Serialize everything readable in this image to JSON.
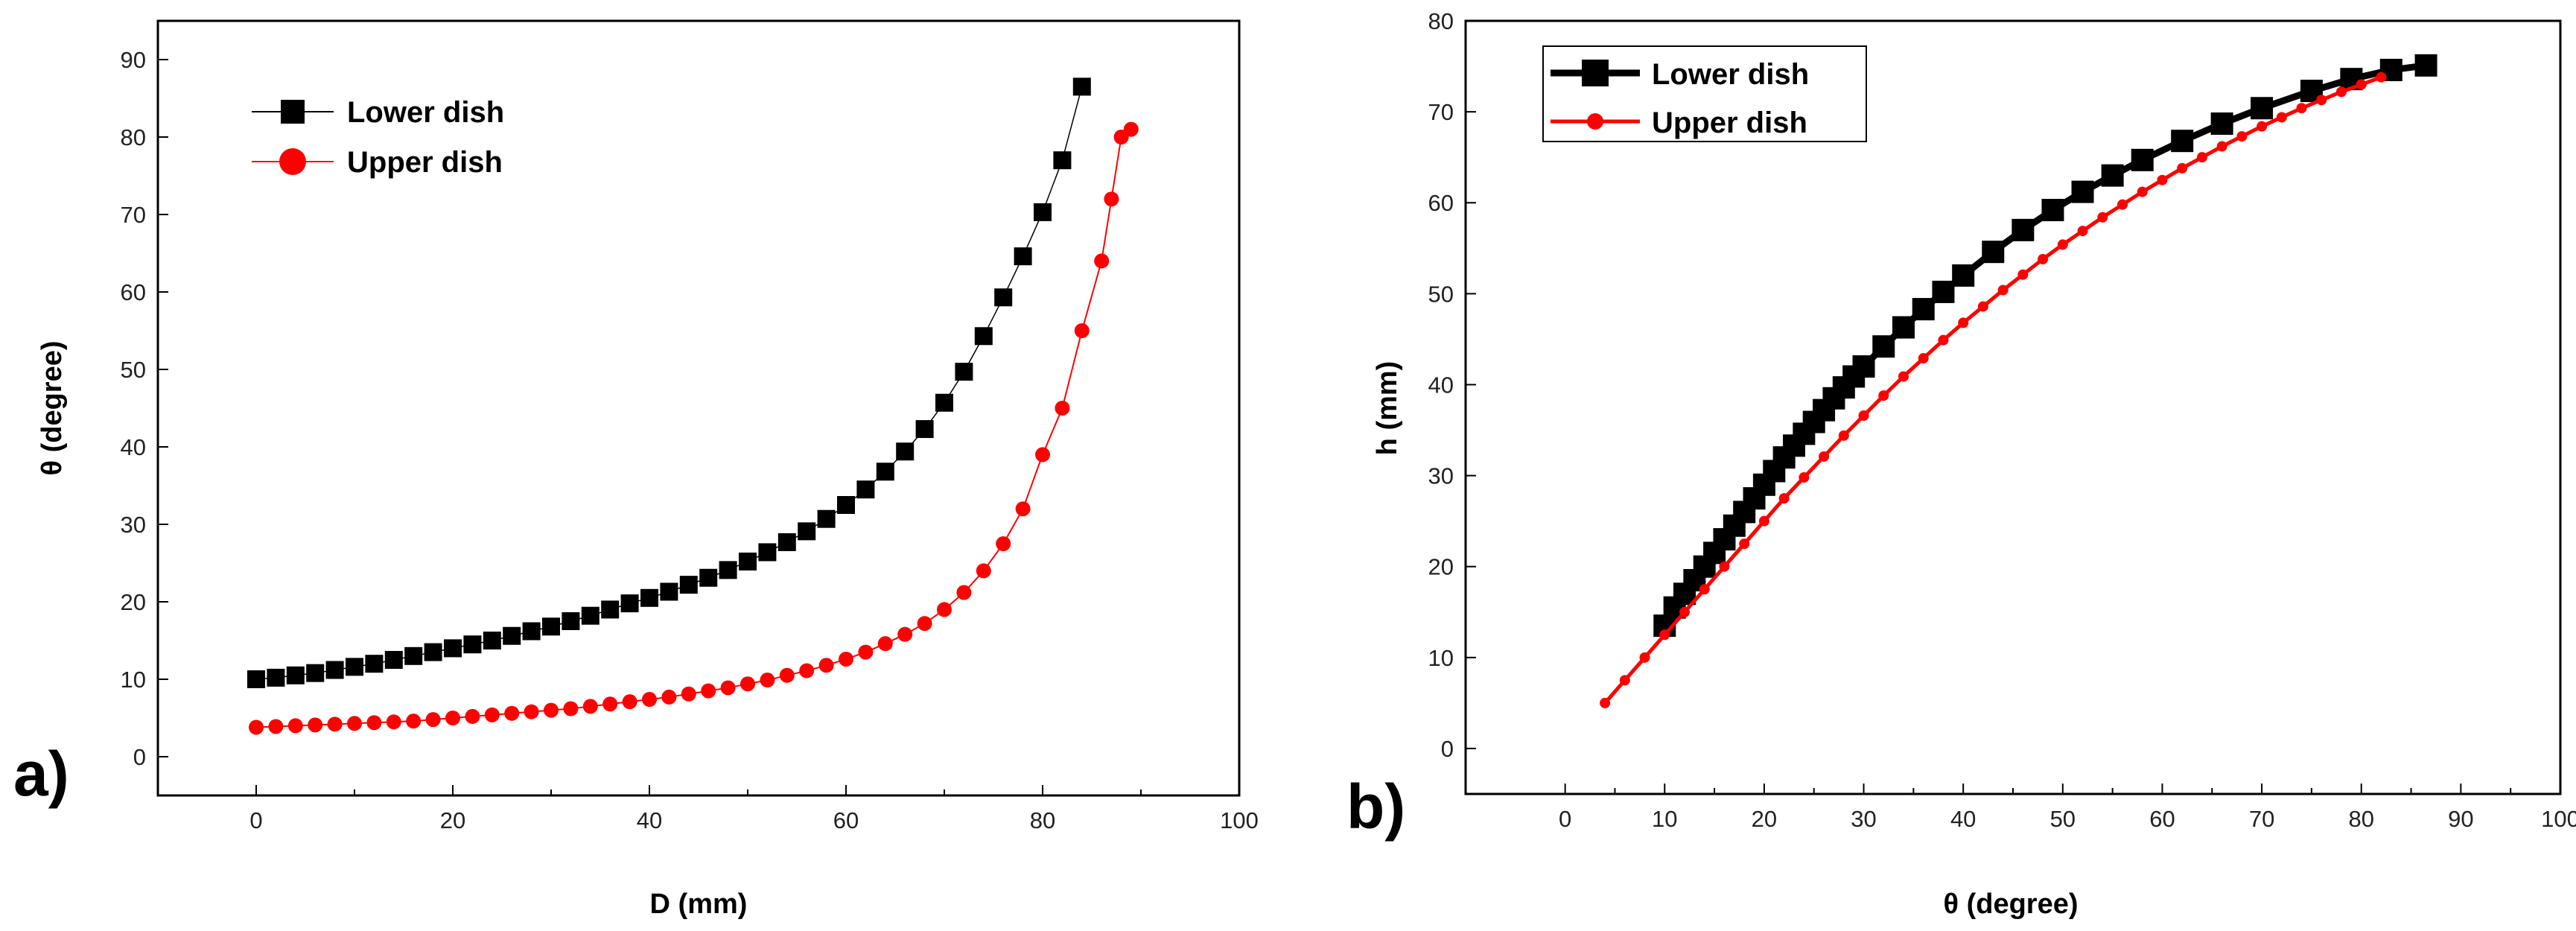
{
  "colors": {
    "lower": "#000000",
    "upper": "#ff0000"
  },
  "chart_data": [
    {
      "type": "scatter",
      "panel_label": "a)",
      "title": "",
      "xlabel": "D (mm)",
      "ylabel": "θ (degree)",
      "xlim": [
        -10,
        100
      ],
      "ylim": [
        -5,
        95
      ],
      "xticks": [
        0,
        20,
        40,
        60,
        80,
        100
      ],
      "yticks": [
        0,
        10,
        20,
        30,
        40,
        50,
        60,
        70,
        80,
        90
      ],
      "legend_position": "top-left",
      "series": [
        {
          "name": "Lower dish",
          "marker": "square",
          "color": "#000000",
          "x": [
            0,
            2,
            4,
            6,
            8,
            10,
            12,
            14,
            16,
            18,
            20,
            22,
            24,
            26,
            28,
            30,
            32,
            34,
            36,
            38,
            40,
            42,
            44,
            46,
            48,
            50,
            52,
            54,
            56,
            58,
            60,
            62,
            64,
            66,
            68,
            70,
            72,
            74,
            76,
            78,
            80,
            82,
            84
          ],
          "y": [
            10.0,
            10.2,
            10.5,
            10.8,
            11.2,
            11.6,
            12.0,
            12.5,
            13.0,
            13.5,
            14.0,
            14.5,
            15.0,
            15.6,
            16.2,
            16.8,
            17.5,
            18.2,
            19.0,
            19.8,
            20.5,
            21.3,
            22.2,
            23.1,
            24.1,
            25.2,
            26.4,
            27.7,
            29.1,
            30.7,
            32.5,
            34.5,
            36.8,
            39.4,
            42.3,
            45.7,
            49.7,
            54.3,
            59.3,
            64.6,
            70.3,
            77.0,
            86.5
          ]
        },
        {
          "name": "Upper dish",
          "marker": "circle",
          "color": "#ff0000",
          "x": [
            0,
            2,
            4,
            6,
            8,
            10,
            12,
            14,
            16,
            18,
            20,
            22,
            24,
            26,
            28,
            30,
            32,
            34,
            36,
            38,
            40,
            42,
            44,
            46,
            48,
            50,
            52,
            54,
            56,
            58,
            60,
            62,
            64,
            66,
            68,
            70,
            72,
            74,
            76,
            78,
            80,
            82,
            84,
            86,
            87,
            88,
            89
          ],
          "y": [
            3.8,
            3.9,
            4.0,
            4.1,
            4.2,
            4.3,
            4.4,
            4.5,
            4.6,
            4.8,
            5.0,
            5.2,
            5.4,
            5.6,
            5.8,
            6.0,
            6.2,
            6.5,
            6.8,
            7.1,
            7.4,
            7.7,
            8.1,
            8.5,
            8.9,
            9.4,
            9.9,
            10.5,
            11.1,
            11.8,
            12.6,
            13.5,
            14.6,
            15.8,
            17.2,
            19.0,
            21.2,
            24.0,
            27.5,
            32.0,
            39.0,
            45.0,
            55.0,
            64.0,
            72.0,
            80.0,
            81.0
          ]
        }
      ]
    },
    {
      "type": "line",
      "panel_label": "b)",
      "title": "",
      "xlabel": "θ (degree)",
      "ylabel": "h (mm)",
      "xlim": [
        -10,
        100
      ],
      "ylim": [
        -5,
        80
      ],
      "xticks": [
        0,
        10,
        20,
        30,
        40,
        50,
        60,
        70,
        80,
        90,
        100
      ],
      "yticks": [
        0,
        10,
        20,
        30,
        40,
        50,
        60,
        70,
        80
      ],
      "legend_position": "top-left",
      "series": [
        {
          "name": "Lower dish",
          "marker": "square",
          "color": "#000000",
          "x": [
            10,
            11,
            12,
            13,
            14,
            15,
            16,
            17,
            18,
            19,
            20,
            21,
            22,
            23,
            24,
            25,
            26,
            27,
            28,
            29,
            30,
            32,
            34,
            36,
            38,
            40,
            43,
            46,
            49,
            52,
            55,
            58,
            62,
            66,
            70,
            75,
            79,
            83,
            86.5
          ],
          "y": [
            13.5,
            15.5,
            17,
            18.5,
            20,
            21.5,
            23,
            24.5,
            26,
            27.5,
            29,
            30.5,
            32,
            33.3,
            34.6,
            35.9,
            37.2,
            38.5,
            39.7,
            40.9,
            42,
            44.2,
            46.3,
            48.3,
            50.2,
            52,
            54.6,
            57,
            59.2,
            61.2,
            63,
            64.7,
            66.8,
            68.7,
            70.4,
            72.3,
            73.6,
            74.6,
            75.1
          ]
        },
        {
          "name": "Upper dish",
          "marker": "circle",
          "color": "#ff0000",
          "x": [
            4,
            6,
            8,
            10,
            12,
            14,
            16,
            18,
            20,
            22,
            24,
            26,
            28,
            30,
            32,
            34,
            36,
            38,
            40,
            42,
            44,
            46,
            48,
            50,
            52,
            54,
            56,
            58,
            60,
            62,
            64,
            66,
            68,
            70,
            72,
            74,
            76,
            78,
            80,
            82
          ],
          "y": [
            5,
            7.5,
            10,
            12.5,
            15,
            17.5,
            20,
            22.5,
            25,
            27.5,
            29.8,
            32.1,
            34.4,
            36.6,
            38.8,
            40.9,
            42.9,
            44.9,
            46.8,
            48.6,
            50.4,
            52.1,
            53.8,
            55.4,
            56.9,
            58.4,
            59.8,
            61.2,
            62.5,
            63.8,
            65,
            66.2,
            67.3,
            68.4,
            69.4,
            70.4,
            71.3,
            72.2,
            73,
            73.8
          ]
        }
      ]
    }
  ]
}
